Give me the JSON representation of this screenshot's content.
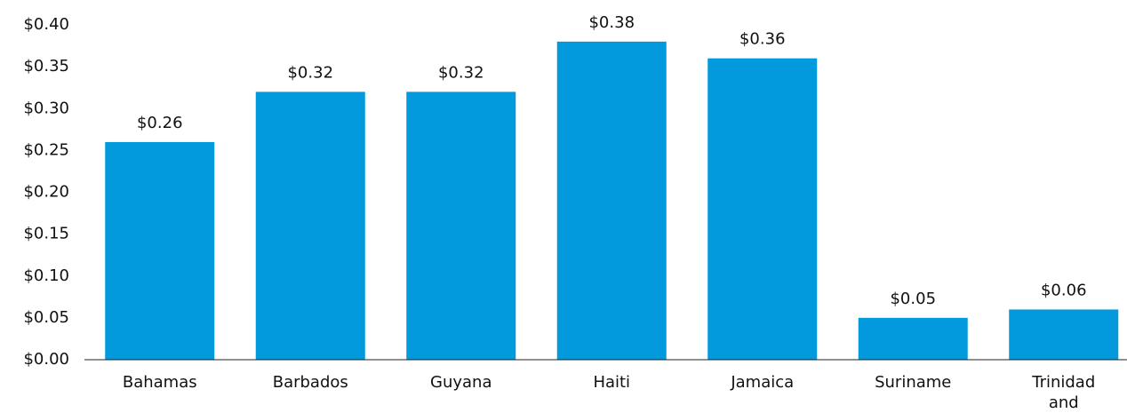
{
  "chart_data": {
    "type": "bar",
    "categories": [
      "Bahamas",
      "Barbados",
      "Guyana",
      "Haiti",
      "Jamaica",
      "Suriname",
      "Trinidad and Tobago"
    ],
    "values": [
      0.26,
      0.32,
      0.32,
      0.38,
      0.36,
      0.05,
      0.06
    ],
    "value_labels": [
      "$0.26",
      "$0.32",
      "$0.32",
      "$0.38",
      "$0.36",
      "$0.05",
      "$0.06"
    ],
    "color": "#0399dd",
    "ylim": [
      0,
      0.4
    ],
    "yticks": [
      {
        "value": 0,
        "label": "$0.00"
      },
      {
        "value": 0.05,
        "label": "$0.05"
      },
      {
        "value": 0.1,
        "label": "$0.10"
      },
      {
        "value": 0.15,
        "label": "$0.15"
      },
      {
        "value": 0.2,
        "label": "$0.20"
      },
      {
        "value": 0.25,
        "label": "$0.25"
      },
      {
        "value": 0.3,
        "label": "$0.30"
      },
      {
        "value": 0.35,
        "label": "$0.35"
      },
      {
        "value": 0.4,
        "label": "$0.40"
      }
    ],
    "grid": false
  }
}
